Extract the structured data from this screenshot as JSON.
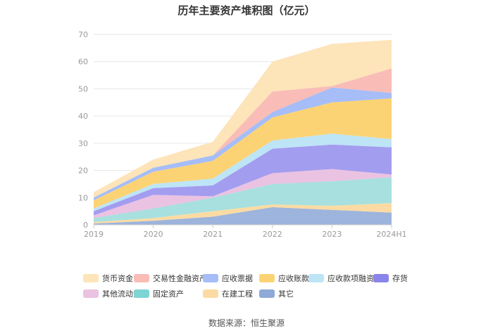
{
  "chart_data": {
    "type": "area",
    "stacked": true,
    "title": "历年主要资产堆积图（亿元）",
    "xlabel": "",
    "ylabel": "",
    "categories": [
      "2019",
      "2020",
      "2021",
      "2022",
      "2023",
      "2024H1"
    ],
    "ylim": [
      0,
      70
    ],
    "yticks": [
      0,
      10,
      20,
      30,
      40,
      50,
      60,
      70
    ],
    "grid": true,
    "legend_position": "bottom",
    "series": [
      {
        "name": "其它",
        "color": "#9db4dc",
        "values": [
          0.5,
          1.5,
          3.0,
          6.5,
          5.5,
          4.5
        ]
      },
      {
        "name": "在建工程",
        "color": "#fbdba3",
        "values": [
          0.5,
          1.0,
          2.0,
          1.0,
          1.5,
          3.5
        ]
      },
      {
        "name": "固定资产",
        "color": "#a7e0de",
        "values": [
          1.5,
          3.5,
          5.0,
          7.5,
          9.0,
          9.5
        ]
      },
      {
        "name": "其他流动资产",
        "color": "#eac2e2",
        "values": [
          1.0,
          5.0,
          0.5,
          4.0,
          4.5,
          1.0
        ]
      },
      {
        "name": "存货",
        "color": "#a39df0",
        "values": [
          1.5,
          2.5,
          4.0,
          9.0,
          9.0,
          10.0
        ]
      },
      {
        "name": "应收款项融资",
        "color": "#bde5f6",
        "values": [
          1.0,
          1.5,
          2.5,
          3.0,
          4.0,
          3.0
        ]
      },
      {
        "name": "应收账款",
        "color": "#fcd374",
        "values": [
          3.0,
          4.5,
          6.5,
          8.5,
          11.5,
          15.0
        ]
      },
      {
        "name": "应收票据",
        "color": "#a6bdf7",
        "values": [
          1.0,
          1.5,
          2.0,
          2.0,
          5.5,
          2.0
        ]
      },
      {
        "name": "交易性金融资产",
        "color": "#f9bcb7",
        "values": [
          0.0,
          0.0,
          0.0,
          7.5,
          0.5,
          9.0
        ]
      },
      {
        "name": "货币资金",
        "color": "#fde4b9",
        "values": [
          2.0,
          3.0,
          5.0,
          11.0,
          15.5,
          10.5
        ]
      }
    ]
  },
  "legend": {
    "items": [
      {
        "label": "货币资金",
        "color": "#fde4b9"
      },
      {
        "label": "交易性金融资产",
        "color": "#f9bcb7"
      },
      {
        "label": "应收票据",
        "color": "#a6bdf7"
      },
      {
        "label": "应收账款",
        "color": "#fcd374"
      },
      {
        "label": "应收款项融资",
        "color": "#bde5f6"
      },
      {
        "label": "存货",
        "color": "#8b84ea"
      },
      {
        "label": "其他流动资产",
        "color": "#eac2e2"
      },
      {
        "label": "固定资产",
        "color": "#7fd4d4"
      },
      {
        "label": "在建工程",
        "color": "#fbdba3"
      },
      {
        "label": "其它",
        "color": "#8fa9d8"
      }
    ]
  },
  "footer": {
    "source": "数据来源：恒生聚源"
  }
}
